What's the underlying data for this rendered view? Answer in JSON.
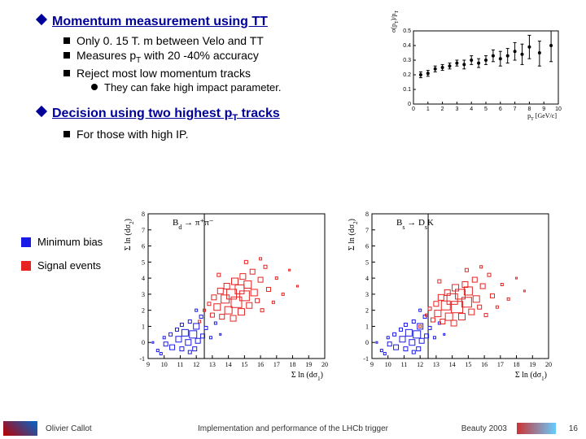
{
  "headings": {
    "h1": "Momentum measurement using TT",
    "h2_pre": "Decision using two highest p",
    "h2_sub": "T",
    "h2_post": " tracks"
  },
  "bullets": {
    "b1": "Only 0. 15 T. m between Velo and TT",
    "b2_pre": "Measures p",
    "b2_sub": "T",
    "b2_post": " with 20 -40% accuracy",
    "b3": "Reject most low momentum tracks",
    "b3a": "They can fake high impact parameter.",
    "b4": "For those with high IP."
  },
  "legend": {
    "minbias": {
      "label": "Minimum bias",
      "color": "#1a1ae6"
    },
    "signal": {
      "label": "Signal events",
      "color": "#e62222"
    }
  },
  "top_chart": {
    "xlabel": "p",
    "xlabel_sub": "T",
    "xlabel_unit": " [GeV/c]",
    "ylabel": "σ(p",
    "ylabel_sub": "T",
    "ylabel_post": ")/p",
    "ylabel_sub2": "T",
    "xlim": [
      0,
      10
    ],
    "ylim": [
      0,
      0.5
    ],
    "xticks": [
      0,
      1,
      2,
      3,
      4,
      5,
      6,
      7,
      8,
      9,
      10
    ],
    "yticks": [
      0,
      0.1,
      0.2,
      0.3,
      0.4,
      0.5
    ],
    "points": [
      {
        "x": 0.5,
        "y": 0.2,
        "eyl": 0.02,
        "eyh": 0.02
      },
      {
        "x": 1.0,
        "y": 0.21,
        "eyl": 0.02,
        "eyh": 0.02
      },
      {
        "x": 1.5,
        "y": 0.24,
        "eyl": 0.02,
        "eyh": 0.02
      },
      {
        "x": 2.0,
        "y": 0.25,
        "eyl": 0.02,
        "eyh": 0.02
      },
      {
        "x": 2.5,
        "y": 0.26,
        "eyl": 0.02,
        "eyh": 0.02
      },
      {
        "x": 3.0,
        "y": 0.28,
        "eyl": 0.02,
        "eyh": 0.02
      },
      {
        "x": 3.5,
        "y": 0.27,
        "eyl": 0.03,
        "eyh": 0.03
      },
      {
        "x": 4.0,
        "y": 0.3,
        "eyl": 0.03,
        "eyh": 0.03
      },
      {
        "x": 4.5,
        "y": 0.28,
        "eyl": 0.03,
        "eyh": 0.03
      },
      {
        "x": 5.0,
        "y": 0.3,
        "eyl": 0.03,
        "eyh": 0.03
      },
      {
        "x": 5.5,
        "y": 0.33,
        "eyl": 0.04,
        "eyh": 0.04
      },
      {
        "x": 6.0,
        "y": 0.31,
        "eyl": 0.05,
        "eyh": 0.05
      },
      {
        "x": 6.5,
        "y": 0.33,
        "eyl": 0.05,
        "eyh": 0.05
      },
      {
        "x": 7.0,
        "y": 0.36,
        "eyl": 0.06,
        "eyh": 0.06
      },
      {
        "x": 7.5,
        "y": 0.34,
        "eyl": 0.07,
        "eyh": 0.07
      },
      {
        "x": 8.0,
        "y": 0.39,
        "eyl": 0.08,
        "eyh": 0.08
      },
      {
        "x": 8.7,
        "y": 0.35,
        "eyl": 0.09,
        "eyh": 0.08
      },
      {
        "x": 9.5,
        "y": 0.4,
        "eyl": 0.11,
        "eyh": 0.1
      }
    ],
    "marker_color": "#000000",
    "background_color": "#ffffff"
  },
  "scatter": {
    "xlabel_pre": "Σ ln (dσ",
    "xlabel_sub": "1",
    "xlabel_post": ")",
    "ylabel_pre": "Σ ln (dσ",
    "ylabel_sub": "2",
    "ylabel_post": ")",
    "plot1_title": "B",
    "plot1_title_sub": "d",
    "plot1_title_post": " → π⁺π⁻",
    "plot2_title": "B",
    "plot2_title_sub": "s",
    "plot2_title_post": " → D",
    "plot2_title_sub2": "s",
    "plot2_title_post2": "K",
    "xlim": [
      9,
      20
    ],
    "ylim": [
      -1,
      8
    ],
    "xticks": [
      9,
      10,
      11,
      12,
      13,
      14,
      15,
      16,
      17,
      18,
      19,
      20
    ],
    "yticks": [
      -1,
      0,
      1,
      2,
      3,
      4,
      5,
      6,
      7,
      8
    ],
    "colors": {
      "minbias": "#1a1ae6",
      "signal": "#e62222"
    },
    "vline_x": 12.5,
    "plot1": {
      "minbias": [
        {
          "x": 9.3,
          "y": 0.0,
          "s": 2
        },
        {
          "x": 9.6,
          "y": -0.5,
          "s": 3
        },
        {
          "x": 10.0,
          "y": 0.3,
          "s": 3
        },
        {
          "x": 10.1,
          "y": -0.1,
          "s": 5
        },
        {
          "x": 10.4,
          "y": 0.5,
          "s": 4
        },
        {
          "x": 10.5,
          "y": -0.3,
          "s": 6
        },
        {
          "x": 10.8,
          "y": 0.8,
          "s": 4
        },
        {
          "x": 10.9,
          "y": 0.2,
          "s": 7
        },
        {
          "x": 11.1,
          "y": -0.4,
          "s": 5
        },
        {
          "x": 11.1,
          "y": 1.1,
          "s": 4
        },
        {
          "x": 11.3,
          "y": 0.6,
          "s": 8
        },
        {
          "x": 11.5,
          "y": 0.0,
          "s": 7
        },
        {
          "x": 11.6,
          "y": 1.3,
          "s": 4
        },
        {
          "x": 11.8,
          "y": 0.5,
          "s": 9
        },
        {
          "x": 11.9,
          "y": -0.4,
          "s": 5
        },
        {
          "x": 12.0,
          "y": 1.0,
          "s": 7
        },
        {
          "x": 12.1,
          "y": 0.1,
          "s": 6
        },
        {
          "x": 12.3,
          "y": 1.6,
          "s": 4
        },
        {
          "x": 12.4,
          "y": 0.4,
          "s": 5
        },
        {
          "x": 12.6,
          "y": 0.9,
          "s": 4
        },
        {
          "x": 12.9,
          "y": 0.3,
          "s": 3
        },
        {
          "x": 13.2,
          "y": 1.2,
          "s": 3
        },
        {
          "x": 13.5,
          "y": 0.5,
          "s": 2
        },
        {
          "x": 9.8,
          "y": -0.7,
          "s": 3
        },
        {
          "x": 11.6,
          "y": -0.6,
          "s": 4
        },
        {
          "x": 12.0,
          "y": 2.0,
          "s": 3
        }
      ],
      "signal": [
        {
          "x": 12.5,
          "y": 2.0,
          "s": 3
        },
        {
          "x": 12.8,
          "y": 2.4,
          "s": 4
        },
        {
          "x": 13.0,
          "y": 1.7,
          "s": 5
        },
        {
          "x": 13.1,
          "y": 2.8,
          "s": 6
        },
        {
          "x": 13.3,
          "y": 2.2,
          "s": 8
        },
        {
          "x": 13.5,
          "y": 3.2,
          "s": 7
        },
        {
          "x": 13.6,
          "y": 1.6,
          "s": 6
        },
        {
          "x": 13.8,
          "y": 2.7,
          "s": 10
        },
        {
          "x": 13.9,
          "y": 3.5,
          "s": 7
        },
        {
          "x": 14.0,
          "y": 2.0,
          "s": 9
        },
        {
          "x": 14.2,
          "y": 3.0,
          "s": 12
        },
        {
          "x": 14.3,
          "y": 1.5,
          "s": 7
        },
        {
          "x": 14.4,
          "y": 3.8,
          "s": 8
        },
        {
          "x": 14.5,
          "y": 2.5,
          "s": 13
        },
        {
          "x": 14.7,
          "y": 3.3,
          "s": 11
        },
        {
          "x": 14.8,
          "y": 1.9,
          "s": 8
        },
        {
          "x": 14.9,
          "y": 4.1,
          "s": 7
        },
        {
          "x": 15.0,
          "y": 2.9,
          "s": 12
        },
        {
          "x": 15.2,
          "y": 3.6,
          "s": 9
        },
        {
          "x": 15.3,
          "y": 2.3,
          "s": 7
        },
        {
          "x": 15.5,
          "y": 4.4,
          "s": 6
        },
        {
          "x": 15.6,
          "y": 3.1,
          "s": 8
        },
        {
          "x": 15.8,
          "y": 2.6,
          "s": 5
        },
        {
          "x": 16.0,
          "y": 3.9,
          "s": 6
        },
        {
          "x": 16.1,
          "y": 2.0,
          "s": 4
        },
        {
          "x": 16.3,
          "y": 4.7,
          "s": 4
        },
        {
          "x": 16.5,
          "y": 3.3,
          "s": 5
        },
        {
          "x": 16.8,
          "y": 2.5,
          "s": 3
        },
        {
          "x": 17.0,
          "y": 4.0,
          "s": 3
        },
        {
          "x": 17.4,
          "y": 3.0,
          "s": 3
        },
        {
          "x": 17.8,
          "y": 4.5,
          "s": 2
        },
        {
          "x": 18.3,
          "y": 3.5,
          "s": 2
        },
        {
          "x": 12.2,
          "y": 1.3,
          "s": 3
        },
        {
          "x": 13.4,
          "y": 4.2,
          "s": 4
        },
        {
          "x": 15.1,
          "y": 5.0,
          "s": 4
        },
        {
          "x": 16.0,
          "y": 5.2,
          "s": 3
        }
      ]
    },
    "plot2": {
      "minbias": [
        {
          "x": 9.3,
          "y": 0.0,
          "s": 2
        },
        {
          "x": 9.6,
          "y": -0.5,
          "s": 3
        },
        {
          "x": 10.0,
          "y": 0.3,
          "s": 3
        },
        {
          "x": 10.1,
          "y": -0.1,
          "s": 5
        },
        {
          "x": 10.4,
          "y": 0.5,
          "s": 4
        },
        {
          "x": 10.5,
          "y": -0.3,
          "s": 6
        },
        {
          "x": 10.8,
          "y": 0.8,
          "s": 4
        },
        {
          "x": 10.9,
          "y": 0.2,
          "s": 7
        },
        {
          "x": 11.1,
          "y": -0.4,
          "s": 5
        },
        {
          "x": 11.1,
          "y": 1.1,
          "s": 4
        },
        {
          "x": 11.3,
          "y": 0.6,
          "s": 8
        },
        {
          "x": 11.5,
          "y": 0.0,
          "s": 7
        },
        {
          "x": 11.6,
          "y": 1.3,
          "s": 4
        },
        {
          "x": 11.8,
          "y": 0.5,
          "s": 9
        },
        {
          "x": 11.9,
          "y": -0.4,
          "s": 5
        },
        {
          "x": 12.0,
          "y": 1.0,
          "s": 7
        },
        {
          "x": 12.1,
          "y": 0.1,
          "s": 6
        },
        {
          "x": 12.3,
          "y": 1.6,
          "s": 4
        },
        {
          "x": 12.4,
          "y": 0.4,
          "s": 5
        },
        {
          "x": 12.6,
          "y": 0.9,
          "s": 4
        },
        {
          "x": 12.9,
          "y": 0.3,
          "s": 3
        },
        {
          "x": 13.2,
          "y": 1.2,
          "s": 3
        },
        {
          "x": 13.5,
          "y": 0.5,
          "s": 2
        },
        {
          "x": 9.8,
          "y": -0.7,
          "s": 3
        },
        {
          "x": 11.6,
          "y": -0.6,
          "s": 4
        },
        {
          "x": 12.0,
          "y": 2.0,
          "s": 3
        }
      ],
      "signal": [
        {
          "x": 12.4,
          "y": 1.7,
          "s": 3
        },
        {
          "x": 12.6,
          "y": 2.1,
          "s": 4
        },
        {
          "x": 12.8,
          "y": 1.4,
          "s": 5
        },
        {
          "x": 13.0,
          "y": 2.4,
          "s": 6
        },
        {
          "x": 13.1,
          "y": 1.8,
          "s": 8
        },
        {
          "x": 13.3,
          "y": 2.8,
          "s": 7
        },
        {
          "x": 13.4,
          "y": 1.3,
          "s": 6
        },
        {
          "x": 13.6,
          "y": 2.3,
          "s": 11
        },
        {
          "x": 13.7,
          "y": 3.1,
          "s": 7
        },
        {
          "x": 13.8,
          "y": 1.6,
          "s": 9
        },
        {
          "x": 14.0,
          "y": 2.7,
          "s": 13
        },
        {
          "x": 14.1,
          "y": 1.2,
          "s": 7
        },
        {
          "x": 14.2,
          "y": 3.4,
          "s": 8
        },
        {
          "x": 14.3,
          "y": 2.2,
          "s": 14
        },
        {
          "x": 14.5,
          "y": 3.0,
          "s": 12
        },
        {
          "x": 14.6,
          "y": 1.6,
          "s": 8
        },
        {
          "x": 14.8,
          "y": 3.6,
          "s": 7
        },
        {
          "x": 14.9,
          "y": 2.5,
          "s": 12
        },
        {
          "x": 15.0,
          "y": 3.2,
          "s": 10
        },
        {
          "x": 15.2,
          "y": 1.9,
          "s": 7
        },
        {
          "x": 15.4,
          "y": 3.9,
          "s": 6
        },
        {
          "x": 15.5,
          "y": 2.7,
          "s": 8
        },
        {
          "x": 15.7,
          "y": 2.2,
          "s": 5
        },
        {
          "x": 15.9,
          "y": 3.5,
          "s": 6
        },
        {
          "x": 16.1,
          "y": 1.7,
          "s": 4
        },
        {
          "x": 16.3,
          "y": 4.2,
          "s": 4
        },
        {
          "x": 16.5,
          "y": 2.9,
          "s": 5
        },
        {
          "x": 16.8,
          "y": 2.2,
          "s": 3
        },
        {
          "x": 17.1,
          "y": 3.6,
          "s": 3
        },
        {
          "x": 17.5,
          "y": 2.7,
          "s": 3
        },
        {
          "x": 18.0,
          "y": 4.0,
          "s": 2
        },
        {
          "x": 18.5,
          "y": 3.2,
          "s": 2
        },
        {
          "x": 12.0,
          "y": 1.0,
          "s": 3
        },
        {
          "x": 13.2,
          "y": 3.8,
          "s": 4
        },
        {
          "x": 14.9,
          "y": 4.5,
          "s": 4
        },
        {
          "x": 15.8,
          "y": 4.7,
          "s": 3
        }
      ]
    }
  },
  "footer": {
    "author": "Olivier Callot",
    "title": "Implementation and performance of the LHCb trigger",
    "conf": "Beauty 2003",
    "page": "16"
  }
}
